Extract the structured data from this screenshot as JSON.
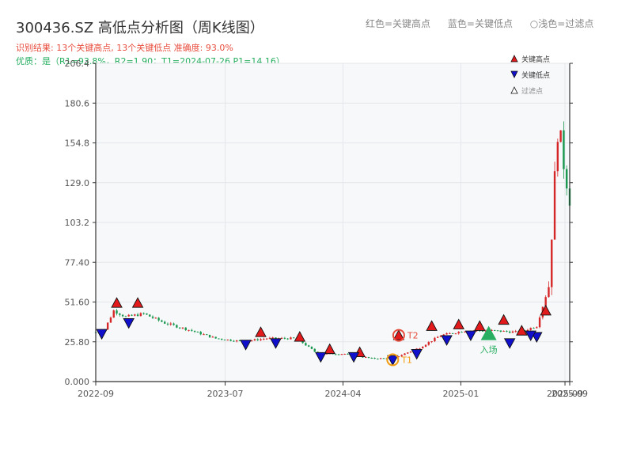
{
  "header": {
    "title": "300436.SZ 高低点分析图（周K线图）",
    "result_line": "识别结果: 13个关键高点, 13个关键低点   准确度: 93.0%",
    "quality_line": "优质：是（R1=93.8%，R2=1.90；T1=2024-07-26 P1=14.16）"
  },
  "top_legend": {
    "red": "红色=关键高点",
    "blue": "蓝色=关键低点",
    "light": "浅色=过滤点"
  },
  "marker_legend": {
    "high": "关键高点",
    "low": "关键低点",
    "filtered": "过滤点"
  },
  "colors": {
    "up": "#d62728",
    "down": "#1a9850",
    "high_marker": "#e31a1c",
    "low_marker": "#1010cc",
    "t1": "#f39c12",
    "t2": "#e74c3c",
    "entry": "#27ae60",
    "plot_bg": "#f7f8fa",
    "grid": "#e3e6ea"
  },
  "chart_data": {
    "type": "candlestick",
    "title": "300436.SZ 高低点分析图（周K线图）",
    "y_ticks": [
      "0.000",
      "25.80",
      "51.60",
      "77.40",
      "103.2",
      "129.0",
      "154.8",
      "180.6",
      "206.4"
    ],
    "ylim": [
      0,
      206.4
    ],
    "x_ticks": [
      {
        "date": "2022-09-02",
        "label": "2022-09"
      },
      {
        "date": "2023-07-01",
        "label": "2023-07"
      },
      {
        "date": "2024-04-01",
        "label": "2024-04"
      },
      {
        "date": "2025-01-01",
        "label": "2025-01"
      },
      {
        "date": "2025-09-01",
        "label": "2025-09"
      },
      {
        "date": "2025-09-12",
        "label": "2025-09"
      }
    ],
    "xlim": [
      "2022-09-02",
      "2025-09-12"
    ],
    "key_highs": [
      {
        "date": "2022-10-21",
        "value": 51
      },
      {
        "date": "2022-12-09",
        "value": 51
      },
      {
        "date": "2023-09-22",
        "value": 32
      },
      {
        "date": "2023-12-22",
        "value": 29
      },
      {
        "date": "2024-03-01",
        "value": 21
      },
      {
        "date": "2024-05-10",
        "value": 19
      },
      {
        "date": "2024-08-09",
        "value": 30
      },
      {
        "date": "2024-10-25",
        "value": 36
      },
      {
        "date": "2024-12-27",
        "value": 37
      },
      {
        "date": "2025-02-14",
        "value": 36
      },
      {
        "date": "2025-04-11",
        "value": 40
      },
      {
        "date": "2025-05-23",
        "value": 33
      },
      {
        "date": "2025-07-18",
        "value": 46
      }
    ],
    "key_lows": [
      {
        "date": "2022-09-16",
        "value": 31
      },
      {
        "date": "2022-11-18",
        "value": 38
      },
      {
        "date": "2023-08-18",
        "value": 24
      },
      {
        "date": "2023-10-27",
        "value": 25
      },
      {
        "date": "2024-02-09",
        "value": 16
      },
      {
        "date": "2024-04-26",
        "value": 16
      },
      {
        "date": "2024-07-26",
        "value": 14
      },
      {
        "date": "2024-09-20",
        "value": 18
      },
      {
        "date": "2024-11-29",
        "value": 27
      },
      {
        "date": "2025-01-24",
        "value": 30
      },
      {
        "date": "2025-04-25",
        "value": 25
      },
      {
        "date": "2025-06-27",
        "value": 29
      },
      {
        "date": "2025-06-13",
        "value": 30
      }
    ],
    "t1": {
      "label": "T1",
      "date": "2024-07-26",
      "value": 14.16
    },
    "t2": {
      "label": "T2",
      "date": "2024-08-09",
      "value": 30
    },
    "entry": {
      "label": "入场",
      "date": "2025-03-07",
      "value": 31
    },
    "weekly_close_anchors": [
      {
        "date": "2022-09-02",
        "close": 32
      },
      {
        "date": "2022-09-23",
        "close": 34
      },
      {
        "date": "2022-10-14",
        "close": 46
      },
      {
        "date": "2022-11-11",
        "close": 42
      },
      {
        "date": "2022-12-23",
        "close": 44
      },
      {
        "date": "2023-02-10",
        "close": 38
      },
      {
        "date": "2023-04-14",
        "close": 33
      },
      {
        "date": "2023-06-09",
        "close": 28
      },
      {
        "date": "2023-08-11",
        "close": 26
      },
      {
        "date": "2023-10-06",
        "close": 28
      },
      {
        "date": "2023-12-15",
        "close": 28
      },
      {
        "date": "2024-02-02",
        "close": 18
      },
      {
        "date": "2024-04-05",
        "close": 18
      },
      {
        "date": "2024-06-07",
        "close": 15
      },
      {
        "date": "2024-07-26",
        "close": 15
      },
      {
        "date": "2024-09-27",
        "close": 22
      },
      {
        "date": "2024-11-15",
        "close": 30
      },
      {
        "date": "2025-01-10",
        "close": 33
      },
      {
        "date": "2025-03-14",
        "close": 33
      },
      {
        "date": "2025-05-16",
        "close": 32
      },
      {
        "date": "2025-06-27",
        "close": 36
      },
      {
        "date": "2025-07-25",
        "close": 62
      },
      {
        "date": "2025-08-15",
        "close": 165
      },
      {
        "date": "2025-09-12",
        "close": 120
      }
    ]
  }
}
